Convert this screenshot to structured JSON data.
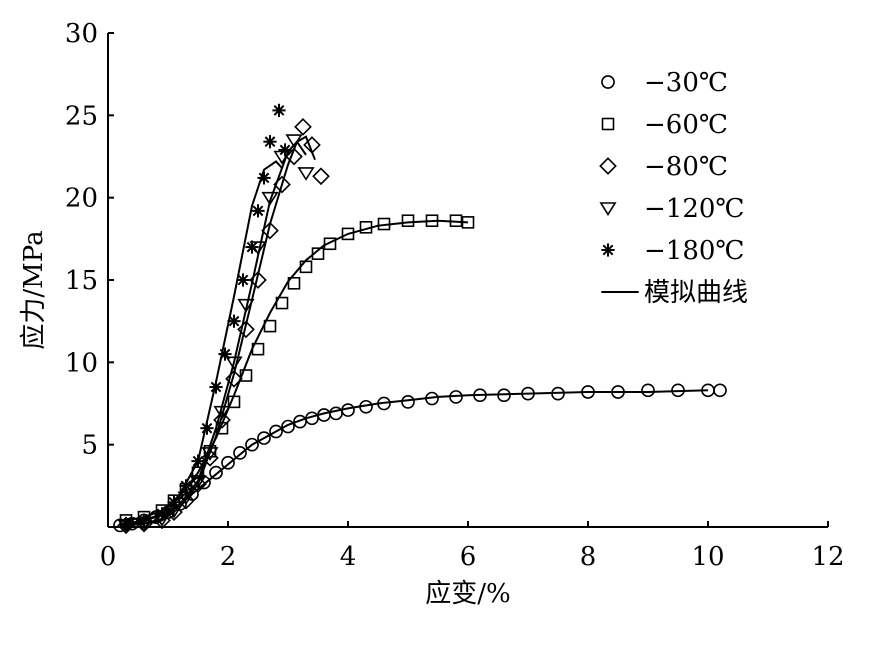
{
  "chart_data": {
    "type": "scatter",
    "xlabel": "应变/%",
    "ylabel": "应力/MPa",
    "xlim": [
      0,
      12
    ],
    "ylim": [
      0,
      30
    ],
    "x_ticks": [
      "0",
      "2",
      "4",
      "6",
      "8",
      "10",
      "12"
    ],
    "y_ticks": [
      "5",
      "10",
      "15",
      "20",
      "25",
      "30"
    ],
    "grid": false,
    "legend_position": "top-right",
    "series": [
      {
        "name": "−30℃",
        "marker": "circle",
        "x": [
          0.2,
          0.4,
          0.6,
          0.8,
          1.0,
          1.2,
          1.4,
          1.6,
          1.8,
          2.0,
          2.2,
          2.4,
          2.6,
          2.8,
          3.0,
          3.2,
          3.4,
          3.6,
          3.8,
          4.0,
          4.3,
          4.6,
          5.0,
          5.4,
          5.8,
          6.2,
          6.6,
          7.0,
          7.5,
          8.0,
          8.5,
          9.0,
          9.5,
          10.0,
          10.2
        ],
        "y": [
          0.1,
          0.2,
          0.4,
          0.6,
          0.9,
          1.4,
          2.0,
          2.7,
          3.3,
          3.9,
          4.5,
          5.0,
          5.4,
          5.8,
          6.1,
          6.4,
          6.6,
          6.8,
          6.9,
          7.1,
          7.3,
          7.5,
          7.6,
          7.8,
          7.9,
          8.0,
          8.0,
          8.1,
          8.1,
          8.2,
          8.2,
          8.3,
          8.3,
          8.3,
          8.3
        ]
      },
      {
        "name": "−60℃",
        "marker": "square",
        "x": [
          0.3,
          0.6,
          0.9,
          1.1,
          1.3,
          1.5,
          1.7,
          1.9,
          2.1,
          2.3,
          2.5,
          2.7,
          2.9,
          3.1,
          3.3,
          3.5,
          3.7,
          4.0,
          4.3,
          4.6,
          5.0,
          5.4,
          5.8,
          6.0
        ],
        "y": [
          0.4,
          0.6,
          1.0,
          1.6,
          2.3,
          3.3,
          4.6,
          6.0,
          7.6,
          9.2,
          10.8,
          12.2,
          13.6,
          14.8,
          15.8,
          16.6,
          17.2,
          17.8,
          18.2,
          18.4,
          18.6,
          18.6,
          18.6,
          18.5
        ]
      },
      {
        "name": "−80℃",
        "marker": "diamond",
        "x": [
          0.3,
          0.6,
          0.9,
          1.1,
          1.3,
          1.5,
          1.7,
          1.9,
          2.1,
          2.3,
          2.5,
          2.7,
          2.9,
          3.1,
          3.25,
          3.4,
          3.55
        ],
        "y": [
          0.1,
          0.2,
          0.4,
          0.9,
          1.6,
          2.6,
          4.2,
          6.5,
          9.0,
          12.0,
          15.0,
          18.0,
          20.8,
          22.5,
          24.3,
          23.2,
          21.3
        ]
      },
      {
        "name": "−120℃",
        "marker": "triangle-down",
        "x": [
          0.3,
          0.6,
          0.9,
          1.1,
          1.3,
          1.5,
          1.7,
          1.9,
          2.1,
          2.3,
          2.5,
          2.7,
          2.9,
          3.1,
          3.3
        ],
        "y": [
          0.1,
          0.2,
          0.5,
          1.0,
          1.8,
          2.8,
          4.5,
          7.0,
          10.0,
          13.5,
          17.0,
          20.0,
          22.5,
          23.5,
          21.5
        ]
      },
      {
        "name": "−180℃",
        "marker": "asterisk",
        "x": [
          0.3,
          0.6,
          0.9,
          1.1,
          1.3,
          1.5,
          1.65,
          1.8,
          1.95,
          2.1,
          2.25,
          2.4,
          2.5,
          2.6,
          2.7,
          2.85,
          2.95
        ],
        "y": [
          0.2,
          0.4,
          0.8,
          1.5,
          2.5,
          4.0,
          6.0,
          8.5,
          10.5,
          12.5,
          15.0,
          17.0,
          19.2,
          21.2,
          23.4,
          25.3,
          22.9
        ]
      },
      {
        "name": "模拟曲线",
        "marker": "line",
        "curves": [
          {
            "x": [
              0.2,
              0.5,
              0.8,
              1.0,
              1.2,
              1.4,
              1.6,
              1.8,
              2.0,
              2.2,
              2.4,
              2.6,
              2.8,
              3.0,
              3.3,
              3.6,
              4.0,
              4.5,
              5.0,
              5.5,
              6.0,
              7.0,
              8.0,
              9.0,
              10.0
            ],
            "y": [
              0.1,
              0.3,
              0.6,
              0.9,
              1.4,
              2.0,
              2.6,
              3.2,
              3.8,
              4.4,
              5.0,
              5.4,
              5.8,
              6.2,
              6.6,
              6.9,
              7.2,
              7.5,
              7.7,
              7.9,
              8.0,
              8.1,
              8.2,
              8.2,
              8.3
            ]
          },
          {
            "x": [
              0.3,
              0.6,
              0.9,
              1.2,
              1.5,
              1.8,
              2.1,
              2.4,
              2.7,
              3.0,
              3.3,
              3.6,
              4.0,
              4.5,
              5.0,
              5.5,
              6.0
            ],
            "y": [
              0.4,
              0.6,
              1.0,
              1.9,
              3.3,
              5.4,
              8.0,
              10.8,
              13.0,
              14.9,
              16.2,
              17.1,
              17.8,
              18.3,
              18.5,
              18.6,
              18.5
            ]
          },
          {
            "x": [
              0.3,
              0.6,
              0.9,
              1.2,
              1.5,
              1.8,
              2.1,
              2.4,
              2.7,
              3.0,
              3.15,
              3.3,
              3.45
            ],
            "y": [
              0.1,
              0.2,
              0.4,
              1.2,
              2.6,
              5.5,
              9.3,
              13.8,
              18.4,
              22.0,
              23.4,
              23.7,
              22.3
            ]
          },
          {
            "x": [
              0.3,
              0.6,
              0.9,
              1.2,
              1.5,
              1.8,
              2.1,
              2.4,
              2.7,
              3.0,
              3.15,
              3.3
            ],
            "y": [
              0.1,
              0.2,
              0.5,
              1.4,
              2.8,
              6.0,
              10.0,
              14.8,
              19.8,
              22.8,
              23.4,
              22.6
            ]
          },
          {
            "x": [
              0.3,
              0.6,
              0.9,
              1.2,
              1.5,
              1.8,
              2.1,
              2.4,
              2.6,
              2.8,
              2.9
            ],
            "y": [
              0.2,
              0.4,
              0.8,
              2.0,
              4.0,
              8.8,
              14.0,
              19.5,
              21.7,
              22.2,
              21.8
            ]
          }
        ]
      }
    ]
  }
}
